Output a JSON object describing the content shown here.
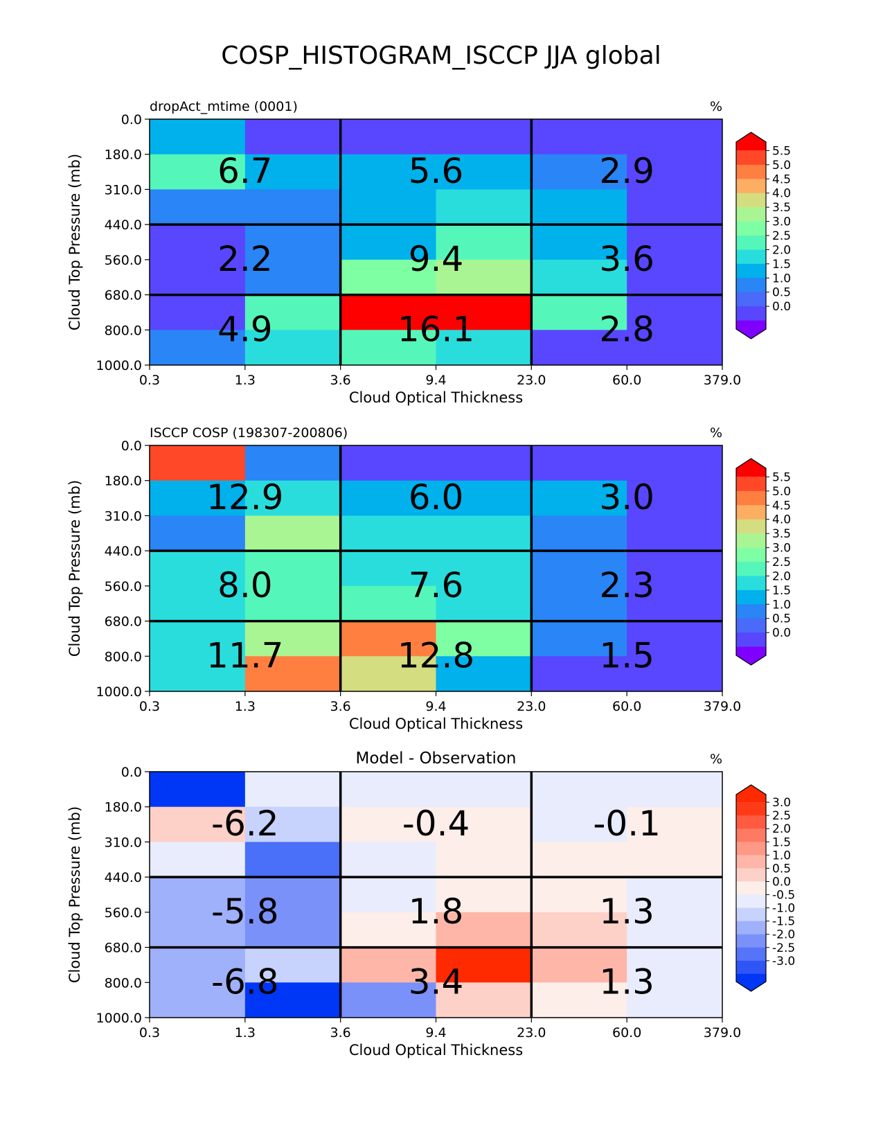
{
  "figure": {
    "title": "COSP_HISTOGRAM_ISCCP JJA global"
  },
  "axes": {
    "x_ticks": [
      "0.3",
      "1.3",
      "3.6",
      "9.4",
      "23.0",
      "60.0",
      "379.0"
    ],
    "y_ticks": [
      "0.0",
      "180.0",
      "310.0",
      "440.0",
      "560.0",
      "680.0",
      "800.0",
      "1000.0"
    ],
    "xlabel": "Cloud Optical Thickness",
    "ylabel": "Cloud Top Pressure (mb)"
  },
  "chart_data": [
    {
      "type": "heatmap",
      "title_left": "dropAct_mtime (0001)",
      "title_center": "",
      "units": "%",
      "colorbar": {
        "ticks": [
          "5.5",
          "5.0",
          "4.5",
          "4.0",
          "3.5",
          "3.0",
          "2.5",
          "2.0",
          "1.5",
          "1.0",
          "0.5",
          "0.0"
        ],
        "colors": [
          "#ff0000",
          "#ff4828",
          "#ff7f41",
          "#fcae62",
          "#d4dd80",
          "#aaf593",
          "#7fffa4",
          "#55f6ba",
          "#2adddd",
          "#00b1ec",
          "#2a85f6",
          "#4a6af9",
          "#5847fe",
          "#7f00ff"
        ]
      },
      "cells": [
        [
          "#00b1ec",
          "#5847fe",
          "#5847fe",
          "#5847fe",
          "#5847fe",
          "#5847fe"
        ],
        [
          "#55f6ba",
          "#00b1ec",
          "#00b1ec",
          "#00b1ec",
          "#2a85f6",
          "#5847fe"
        ],
        [
          "#2a85f6",
          "#2a85f6",
          "#00b1ec",
          "#2adddd",
          "#00b1ec",
          "#5847fe"
        ],
        [
          "#5847fe",
          "#2a85f6",
          "#00b1ec",
          "#55f6ba",
          "#00b1ec",
          "#5847fe"
        ],
        [
          "#5847fe",
          "#2a85f6",
          "#7fffa4",
          "#aaf593",
          "#2adddd",
          "#5847fe"
        ],
        [
          "#5847fe",
          "#55f6ba",
          "#ff0000",
          "#ff0000",
          "#55f6ba",
          "#5847fe"
        ],
        [
          "#2a85f6",
          "#2adddd",
          "#55f6ba",
          "#2adddd",
          "#5847fe",
          "#5847fe"
        ]
      ],
      "block_values": [
        [
          "6.7",
          "5.6",
          "2.9"
        ],
        [
          "2.2",
          "9.4",
          "3.6"
        ],
        [
          "4.9",
          "16.1",
          "2.8"
        ]
      ]
    },
    {
      "type": "heatmap",
      "title_left": "ISCCP COSP (198307-200806)",
      "title_center": "",
      "units": "%",
      "colorbar": {
        "ticks": [
          "5.5",
          "5.0",
          "4.5",
          "4.0",
          "3.5",
          "3.0",
          "2.5",
          "2.0",
          "1.5",
          "1.0",
          "0.5",
          "0.0"
        ],
        "colors": [
          "#ff0000",
          "#ff4828",
          "#ff7f41",
          "#fcae62",
          "#d4dd80",
          "#aaf593",
          "#7fffa4",
          "#55f6ba",
          "#2adddd",
          "#00b1ec",
          "#2a85f6",
          "#4a6af9",
          "#5847fe",
          "#7f00ff"
        ]
      },
      "cells": [
        [
          "#ff4828",
          "#2a85f6",
          "#5847fe",
          "#5847fe",
          "#5847fe",
          "#5847fe"
        ],
        [
          "#00b1ec",
          "#2adddd",
          "#00b1ec",
          "#00b1ec",
          "#00b1ec",
          "#5847fe"
        ],
        [
          "#2a85f6",
          "#aaf593",
          "#2adddd",
          "#2adddd",
          "#2a85f6",
          "#5847fe"
        ],
        [
          "#2adddd",
          "#55f6ba",
          "#2adddd",
          "#2adddd",
          "#2a85f6",
          "#5847fe"
        ],
        [
          "#2adddd",
          "#55f6ba",
          "#55f6ba",
          "#2adddd",
          "#2a85f6",
          "#5847fe"
        ],
        [
          "#2adddd",
          "#aaf593",
          "#ff7f41",
          "#7fffa4",
          "#2a85f6",
          "#5847fe"
        ],
        [
          "#2adddd",
          "#ff7f41",
          "#d4dd80",
          "#00b1ec",
          "#5847fe",
          "#5847fe"
        ]
      ],
      "block_values": [
        [
          "12.9",
          "6.0",
          "3.0"
        ],
        [
          "8.0",
          "7.6",
          "2.3"
        ],
        [
          "11.7",
          "12.8",
          "1.5"
        ]
      ]
    },
    {
      "type": "heatmap",
      "title_left": "",
      "title_center": "Model - Observation",
      "units": "%",
      "colorbar": {
        "ticks": [
          "3.0",
          "2.5",
          "2.0",
          "1.5",
          "1.0",
          "0.5",
          "0.0",
          "-0.5",
          "-1.0",
          "-1.5",
          "-2.0",
          "-2.5",
          "-3.0"
        ],
        "colors": [
          "#ff2a00",
          "#ff3a16",
          "#ff5b40",
          "#ff7a62",
          "#fe9986",
          "#fdb6a8",
          "#fdd0c8",
          "#fdeeea",
          "#e8ecfd",
          "#c7d2fd",
          "#a0b1fb",
          "#7a91fa",
          "#5674f8",
          "#2f55f7",
          "#0037f6"
        ]
      },
      "cells": [
        [
          "#0037f6",
          "#e8ecfd",
          "#e8ecfd",
          "#e8ecfd",
          "#e8ecfd",
          "#e8ecfd"
        ],
        [
          "#fdd0c8",
          "#c7d2fd",
          "#fdeeea",
          "#fdeeea",
          "#e8ecfd",
          "#fdeeea"
        ],
        [
          "#e8ecfd",
          "#4a6ff8",
          "#e8ecfd",
          "#fdeeea",
          "#fdeeea",
          "#fdeeea"
        ],
        [
          "#a0b1fb",
          "#7a91fa",
          "#e8ecfd",
          "#fdeeea",
          "#fdeeea",
          "#e8ecfd"
        ],
        [
          "#a0b1fb",
          "#7a91fa",
          "#fdeeea",
          "#fdb6a8",
          "#fdd0c8",
          "#e8ecfd"
        ],
        [
          "#a0b1fb",
          "#c7d2fd",
          "#fdb6a8",
          "#ff2a00",
          "#fdb6a8",
          "#e8ecfd"
        ],
        [
          "#a0b1fb",
          "#0037f6",
          "#7a91fa",
          "#fdd0c8",
          "#fdeeea",
          "#e8ecfd"
        ]
      ],
      "block_values": [
        [
          "-6.2",
          "-0.4",
          "-0.1"
        ],
        [
          "-5.8",
          "1.8",
          "1.3"
        ],
        [
          "-6.8",
          "3.4",
          "1.3"
        ]
      ]
    }
  ]
}
